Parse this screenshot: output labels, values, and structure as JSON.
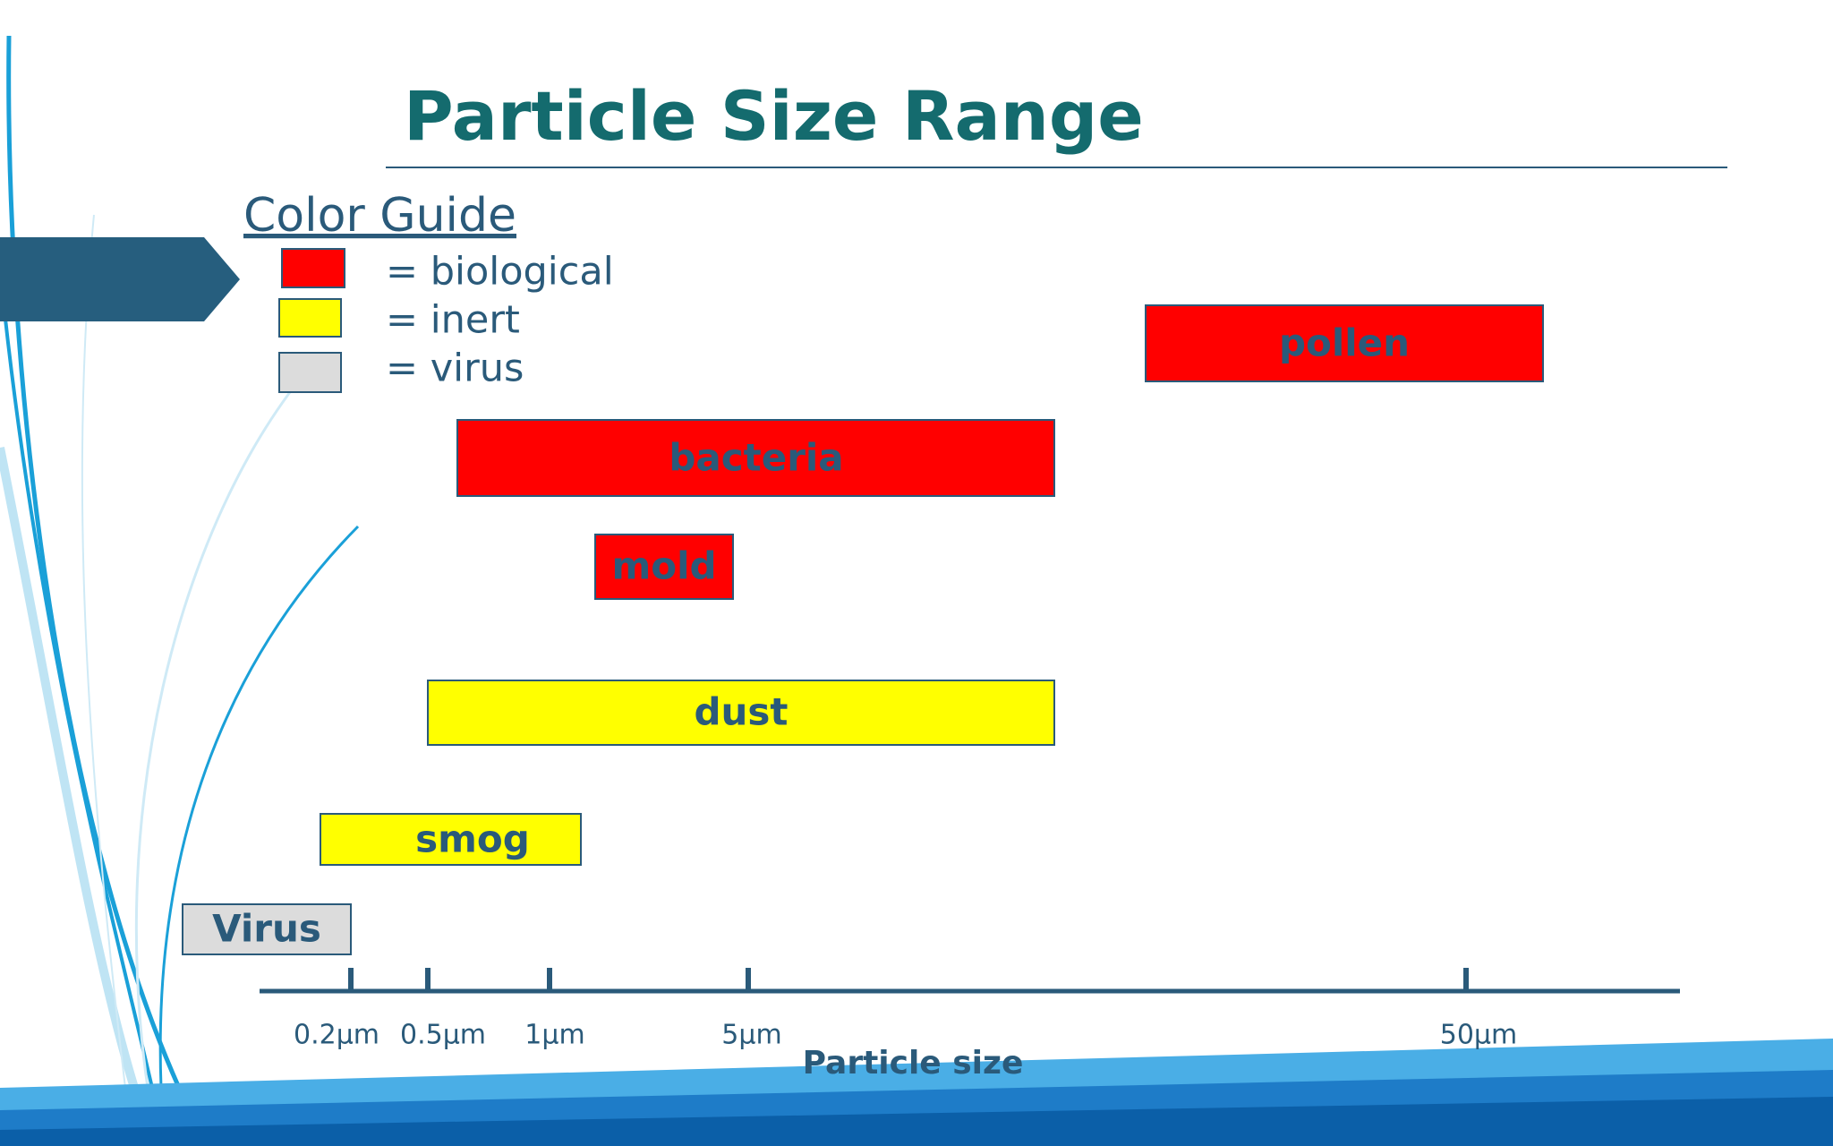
{
  "title": "Particle Size Range",
  "legend": {
    "title": "Color Guide",
    "items": [
      "= biological",
      "= inert",
      "= virus"
    ]
  },
  "bars": [
    "pollen",
    "bacteria",
    "mold",
    "dust",
    "smog",
    "Virus"
  ],
  "axis": {
    "ticks": [
      "0.2µm",
      "0.5µm",
      "1µm",
      "5µm",
      "50µm"
    ],
    "title": "Particle size"
  }
}
